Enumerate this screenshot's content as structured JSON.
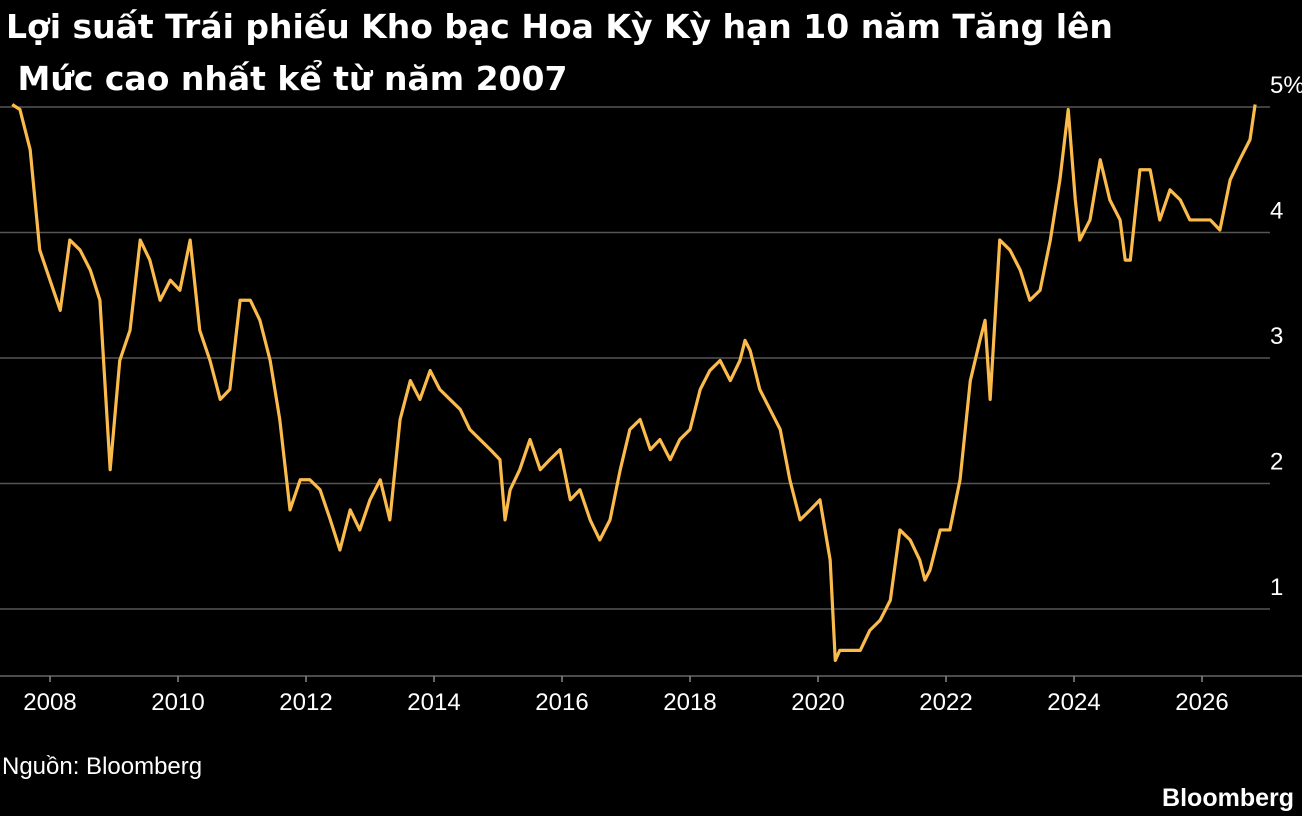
{
  "chart_data": {
    "type": "line",
    "title": [
      "Lợi suất Trái phiếu Kho bạc Hoa Kỳ Kỳ hạn 10 năm Tăng lên",
      " Mức cao nhất kể từ năm 2007"
    ],
    "source": "Nguồn: Bloomberg",
    "brand": "Bloomberg",
    "color": "#fbbb4c",
    "grid": true,
    "xlim": [
      2007.25,
      2027.25
    ],
    "xticks": [
      2008,
      2010,
      2012,
      2014,
      2016,
      2018,
      2020,
      2022,
      2024,
      2026
    ],
    "ylim": [
      0.5,
      5
    ],
    "yticks": [
      1,
      2,
      3,
      4,
      {
        "value": 5,
        "label": "5%"
      }
    ],
    "x": [
      2007.41,
      2007.53,
      2007.69,
      2007.84,
      2008.0,
      2008.16,
      2008.31,
      2008.47,
      2008.63,
      2008.78,
      2008.94,
      2009.09,
      2009.25,
      2009.41,
      2009.56,
      2009.72,
      2009.88,
      2010.03,
      2010.19,
      2010.34,
      2010.5,
      2010.66,
      2010.81,
      2010.97,
      2011.13,
      2011.28,
      2011.44,
      2011.59,
      2011.75,
      2011.91,
      2012.06,
      2012.22,
      2012.38,
      2012.53,
      2012.69,
      2012.84,
      2013.0,
      2013.16,
      2013.31,
      2013.47,
      2013.63,
      2013.78,
      2013.94,
      2014.09,
      2014.25,
      2014.41,
      2014.56,
      2014.72,
      2014.88,
      2015.03,
      2015.11,
      2015.19,
      2015.34,
      2015.5,
      2015.66,
      2015.81,
      2015.97,
      2016.13,
      2016.28,
      2016.44,
      2016.59,
      2016.75,
      2016.91,
      2017.06,
      2017.22,
      2017.38,
      2017.53,
      2017.69,
      2017.84,
      2018.0,
      2018.16,
      2018.31,
      2018.47,
      2018.63,
      2018.78,
      2018.86,
      2018.94,
      2019.09,
      2019.25,
      2019.41,
      2019.56,
      2019.72,
      2019.88,
      2020.03,
      2020.19,
      2020.27,
      2020.34,
      2020.5,
      2020.66,
      2020.81,
      2020.97,
      2021.13,
      2021.28,
      2021.44,
      2021.59,
      2021.67,
      2021.75,
      2021.91,
      2022.06,
      2022.22,
      2022.38,
      2022.53,
      2022.61,
      2022.69,
      2022.84,
      2023.0,
      2023.16,
      2023.31,
      2023.47,
      2023.63,
      2023.78,
      2023.91,
      2024.02,
      2024.09,
      2024.25,
      2024.41,
      2024.56,
      2024.72,
      2024.8,
      2024.88,
      2025.03,
      2025.19,
      2025.34,
      2025.5,
      2025.66,
      2025.81,
      2025.97,
      2026.13,
      2026.28,
      2026.44,
      2026.59,
      2026.75,
      2026.83
    ],
    "values": [
      5.02,
      4.98,
      4.66,
      3.86,
      3.62,
      3.38,
      3.94,
      3.86,
      3.7,
      3.46,
      2.11,
      2.98,
      3.22,
      3.94,
      3.78,
      3.46,
      3.62,
      3.54,
      3.94,
      3.22,
      2.98,
      2.67,
      2.75,
      3.46,
      3.46,
      3.3,
      2.98,
      2.51,
      1.79,
      2.03,
      2.03,
      1.95,
      1.71,
      1.47,
      1.79,
      1.63,
      1.87,
      2.03,
      1.71,
      2.51,
      2.82,
      2.67,
      2.9,
      2.75,
      2.67,
      2.59,
      2.43,
      2.35,
      2.27,
      2.19,
      1.71,
      1.95,
      2.11,
      2.35,
      2.11,
      2.19,
      2.27,
      1.87,
      1.95,
      1.71,
      1.55,
      1.71,
      2.11,
      2.43,
      2.51,
      2.27,
      2.35,
      2.19,
      2.35,
      2.43,
      2.75,
      2.9,
      2.98,
      2.82,
      2.98,
      3.14,
      3.06,
      2.75,
      2.59,
      2.43,
      2.03,
      1.71,
      1.79,
      1.87,
      1.39,
      0.59,
      0.67,
      0.67,
      0.67,
      0.83,
      0.91,
      1.07,
      1.63,
      1.55,
      1.39,
      1.23,
      1.31,
      1.63,
      1.63,
      2.03,
      2.82,
      3.14,
      3.3,
      2.67,
      3.94,
      3.86,
      3.7,
      3.46,
      3.54,
      3.94,
      4.42,
      4.98,
      4.26,
      3.94,
      4.1,
      4.58,
      4.26,
      4.1,
      3.78,
      3.78,
      4.5,
      4.5,
      4.1,
      4.34,
      4.26,
      4.1,
      4.1,
      4.1,
      4.02,
      4.42,
      4.58,
      4.74,
      5.02
    ]
  }
}
